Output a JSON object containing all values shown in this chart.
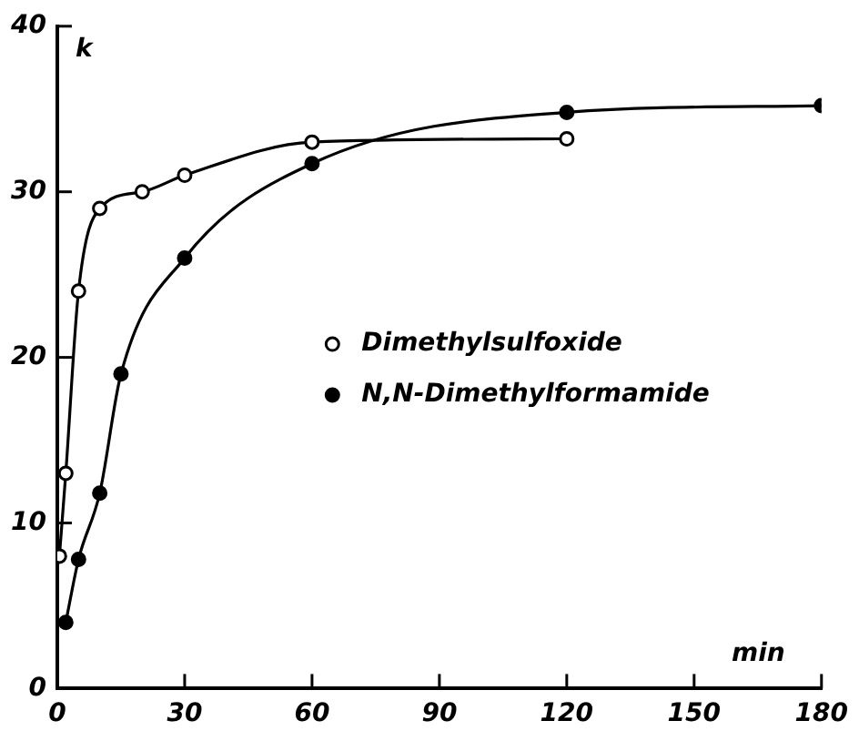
{
  "chart_data": {
    "type": "line",
    "xlabel": "min",
    "ylabel": "k",
    "xlim": [
      0,
      180
    ],
    "xticks": [
      0,
      30,
      60,
      90,
      120,
      150,
      180
    ],
    "ylim": [
      0,
      40
    ],
    "yticks": [
      0,
      10,
      20,
      30,
      40
    ],
    "grid": false,
    "legend": "right",
    "marker": "circle",
    "line_style": "solid",
    "series": [
      {
        "name": "Dimethylsulfoxide",
        "color": "#000000",
        "x": [
          0.5,
          2,
          5,
          10,
          20,
          30,
          60,
          120
        ],
        "values": [
          8,
          13,
          24,
          29,
          30,
          31,
          33,
          33.2
        ]
      },
      {
        "name": "N,N-Dimethylformamide",
        "color": "#000000",
        "x": [
          2,
          5,
          10,
          15,
          30,
          60,
          120,
          180
        ],
        "values": [
          4,
          7.8,
          11.8,
          19,
          26,
          31.7,
          34.8,
          35.2
        ]
      }
    ]
  }
}
